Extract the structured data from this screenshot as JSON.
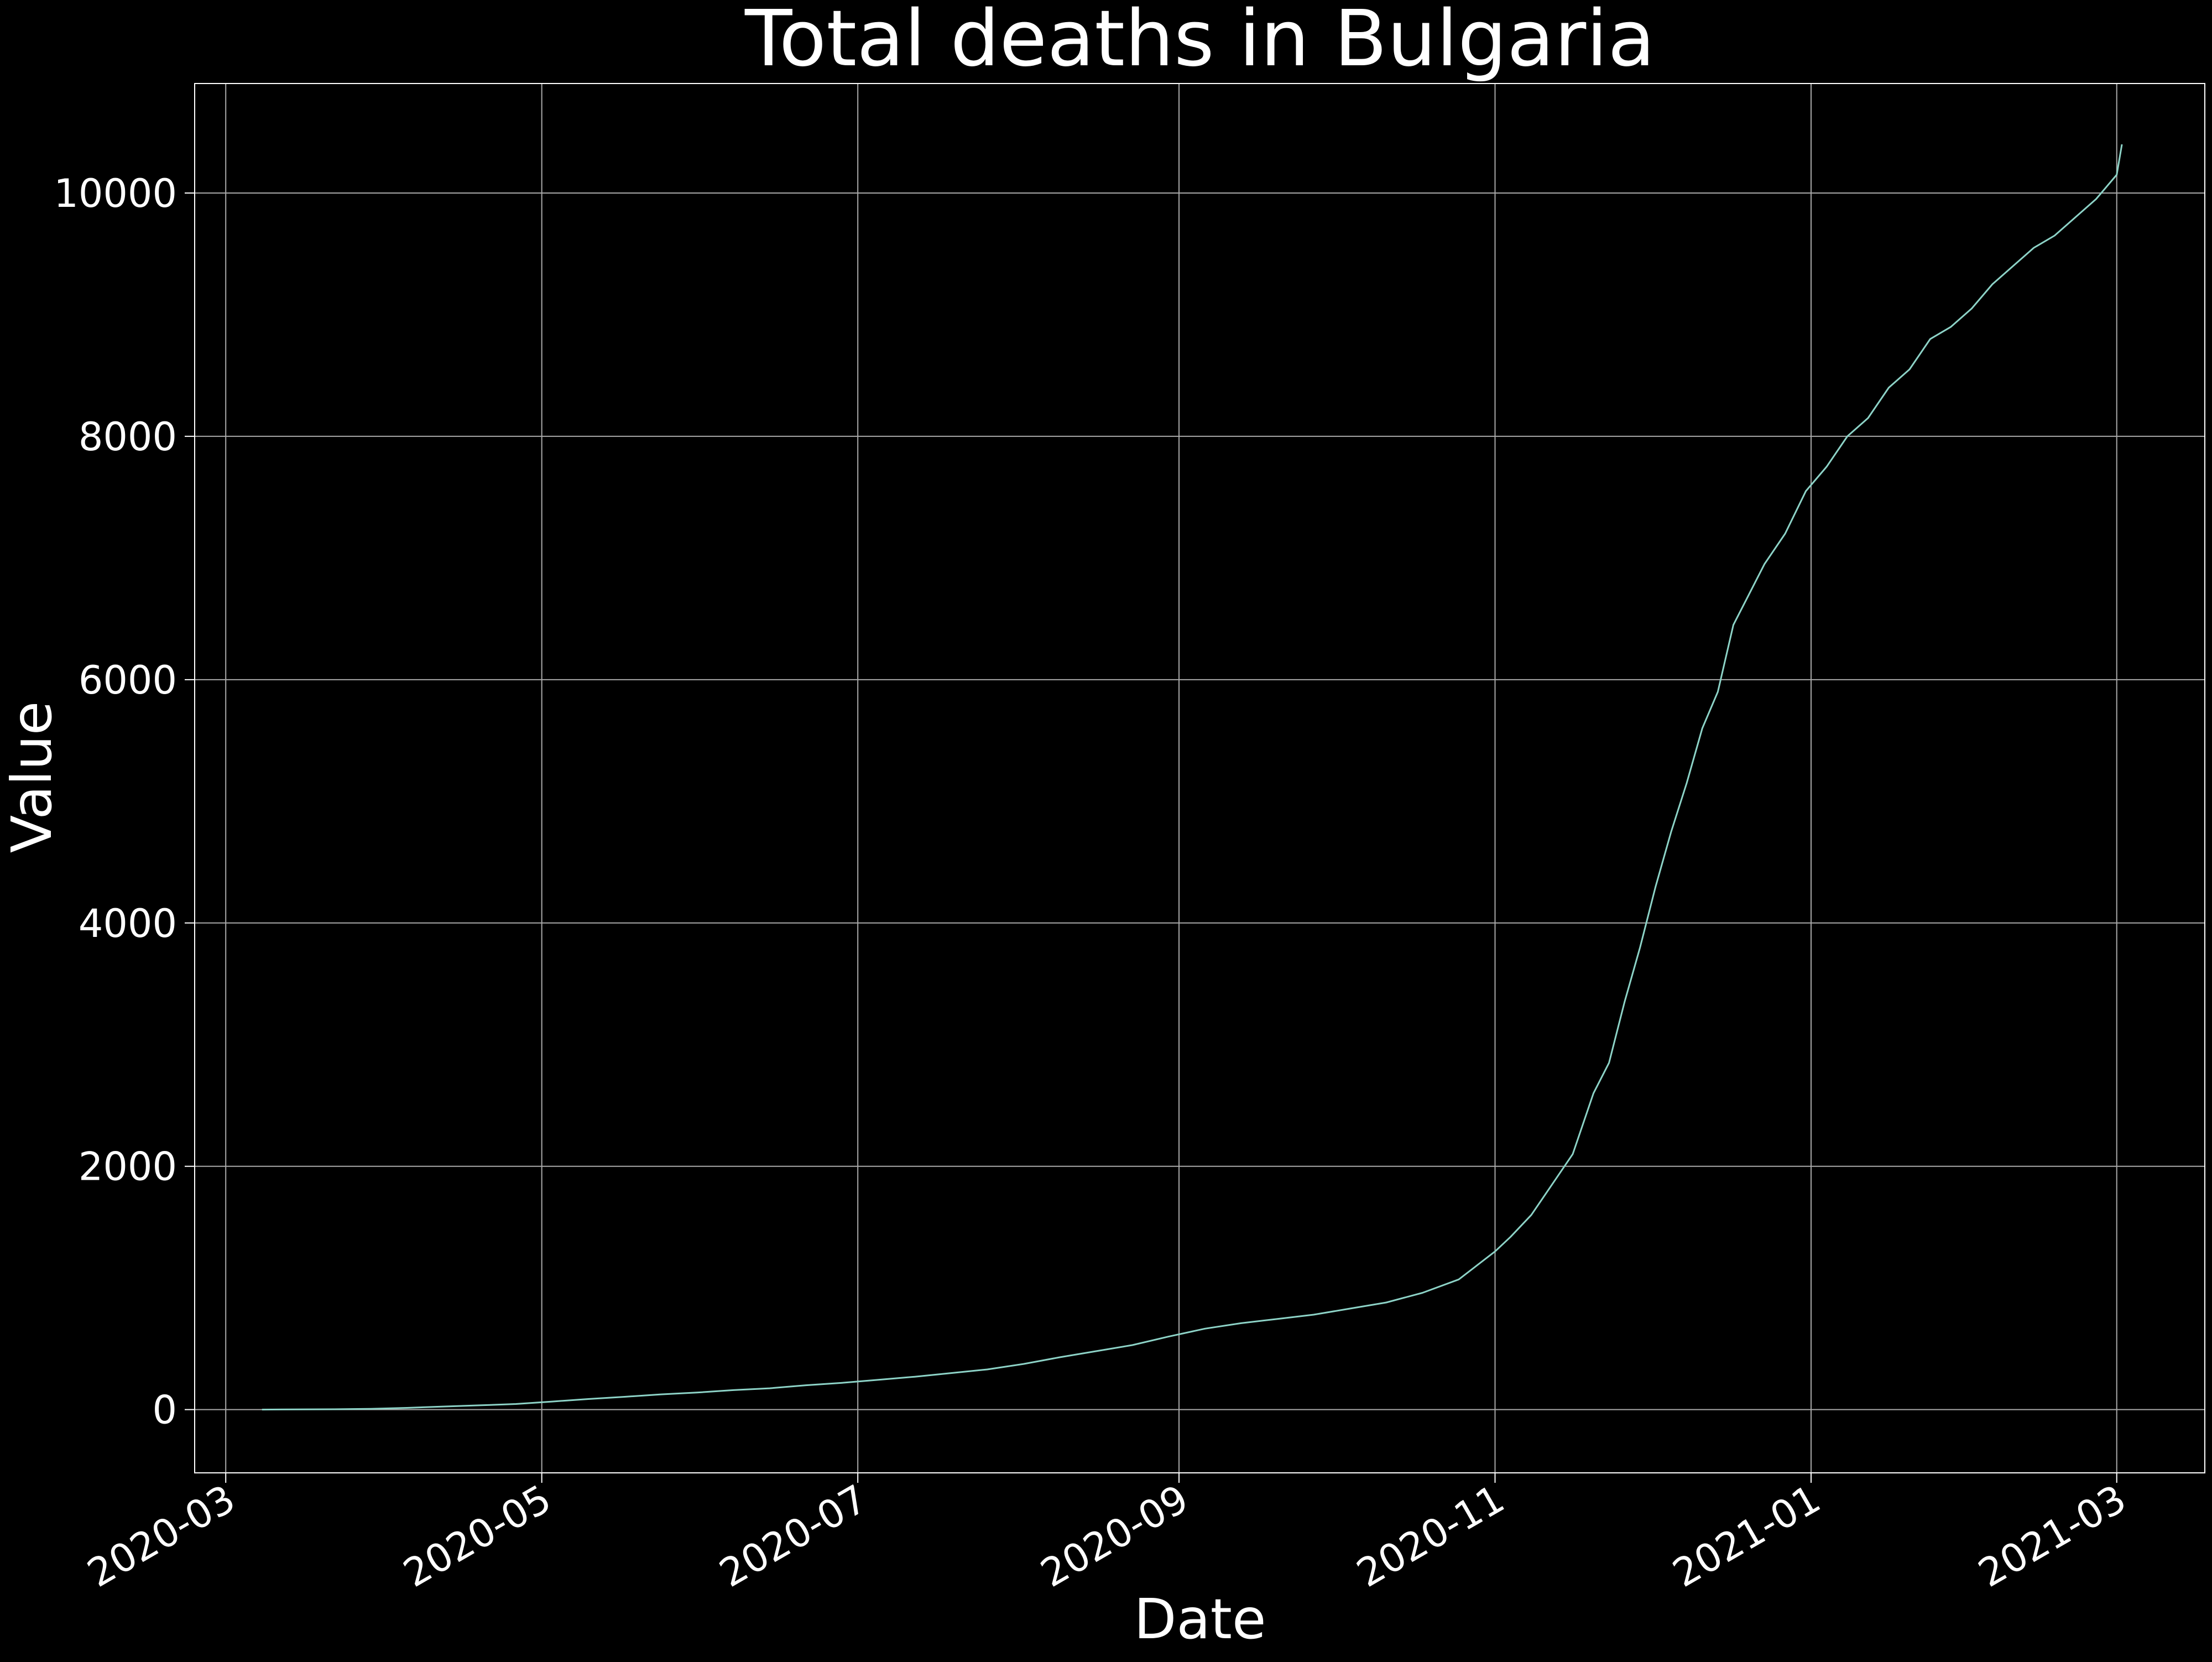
{
  "colors": {
    "background": "#000000",
    "text": "#ffffff",
    "grid": "#a9a9a9",
    "line": "#8dd3c7"
  },
  "chart_data": {
    "type": "line",
    "title": "Total deaths in Bulgaria",
    "xlabel": "Date",
    "ylabel": "Value",
    "x_axis": "date",
    "xlim": [
      "2020-02-24",
      "2021-03-18"
    ],
    "ylim": [
      -520,
      10900
    ],
    "x_ticks": [
      "2020-03",
      "2020-05",
      "2020-07",
      "2020-09",
      "2020-11",
      "2021-01",
      "2021-03"
    ],
    "y_ticks": [
      0,
      2000,
      4000,
      6000,
      8000,
      10000
    ],
    "grid": true,
    "legend": "none",
    "series": [
      {
        "name": "",
        "points": [
          [
            "2020-03-08",
            0
          ],
          [
            "2020-03-15",
            2
          ],
          [
            "2020-03-22",
            3
          ],
          [
            "2020-03-29",
            6
          ],
          [
            "2020-04-05",
            14
          ],
          [
            "2020-04-12",
            25
          ],
          [
            "2020-04-19",
            35
          ],
          [
            "2020-04-26",
            46
          ],
          [
            "2020-05-03",
            66
          ],
          [
            "2020-05-10",
            87
          ],
          [
            "2020-05-17",
            105
          ],
          [
            "2020-05-24",
            125
          ],
          [
            "2020-05-31",
            140
          ],
          [
            "2020-06-07",
            160
          ],
          [
            "2020-06-14",
            175
          ],
          [
            "2020-06-21",
            200
          ],
          [
            "2020-06-28",
            220
          ],
          [
            "2020-07-05",
            245
          ],
          [
            "2020-07-12",
            270
          ],
          [
            "2020-07-19",
            300
          ],
          [
            "2020-07-26",
            330
          ],
          [
            "2020-08-02",
            375
          ],
          [
            "2020-08-09",
            430
          ],
          [
            "2020-08-16",
            480
          ],
          [
            "2020-08-23",
            530
          ],
          [
            "2020-08-30",
            600
          ],
          [
            "2020-09-06",
            665
          ],
          [
            "2020-09-13",
            710
          ],
          [
            "2020-09-20",
            745
          ],
          [
            "2020-09-27",
            780
          ],
          [
            "2020-10-04",
            830
          ],
          [
            "2020-10-11",
            880
          ],
          [
            "2020-10-18",
            960
          ],
          [
            "2020-10-25",
            1070
          ],
          [
            "2020-11-01",
            1300
          ],
          [
            "2020-11-04",
            1420
          ],
          [
            "2020-11-08",
            1600
          ],
          [
            "2020-11-12",
            1850
          ],
          [
            "2020-11-16",
            2100
          ],
          [
            "2020-11-20",
            2600
          ],
          [
            "2020-11-23",
            2850
          ],
          [
            "2020-11-26",
            3350
          ],
          [
            "2020-11-29",
            3800
          ],
          [
            "2020-12-02",
            4300
          ],
          [
            "2020-12-05",
            4750
          ],
          [
            "2020-12-08",
            5150
          ],
          [
            "2020-12-11",
            5600
          ],
          [
            "2020-12-14",
            5900
          ],
          [
            "2020-12-17",
            6450
          ],
          [
            "2020-12-20",
            6700
          ],
          [
            "2020-12-23",
            6950
          ],
          [
            "2020-12-27",
            7200
          ],
          [
            "2020-12-31",
            7550
          ],
          [
            "2021-01-04",
            7750
          ],
          [
            "2021-01-08",
            8000
          ],
          [
            "2021-01-12",
            8150
          ],
          [
            "2021-01-16",
            8400
          ],
          [
            "2021-01-20",
            8550
          ],
          [
            "2021-01-24",
            8800
          ],
          [
            "2021-01-28",
            8900
          ],
          [
            "2021-02-01",
            9050
          ],
          [
            "2021-02-05",
            9250
          ],
          [
            "2021-02-09",
            9400
          ],
          [
            "2021-02-13",
            9550
          ],
          [
            "2021-02-17",
            9650
          ],
          [
            "2021-02-21",
            9800
          ],
          [
            "2021-02-25",
            9950
          ],
          [
            "2021-03-01",
            10150
          ],
          [
            "2021-03-02",
            10400
          ]
        ]
      }
    ]
  }
}
